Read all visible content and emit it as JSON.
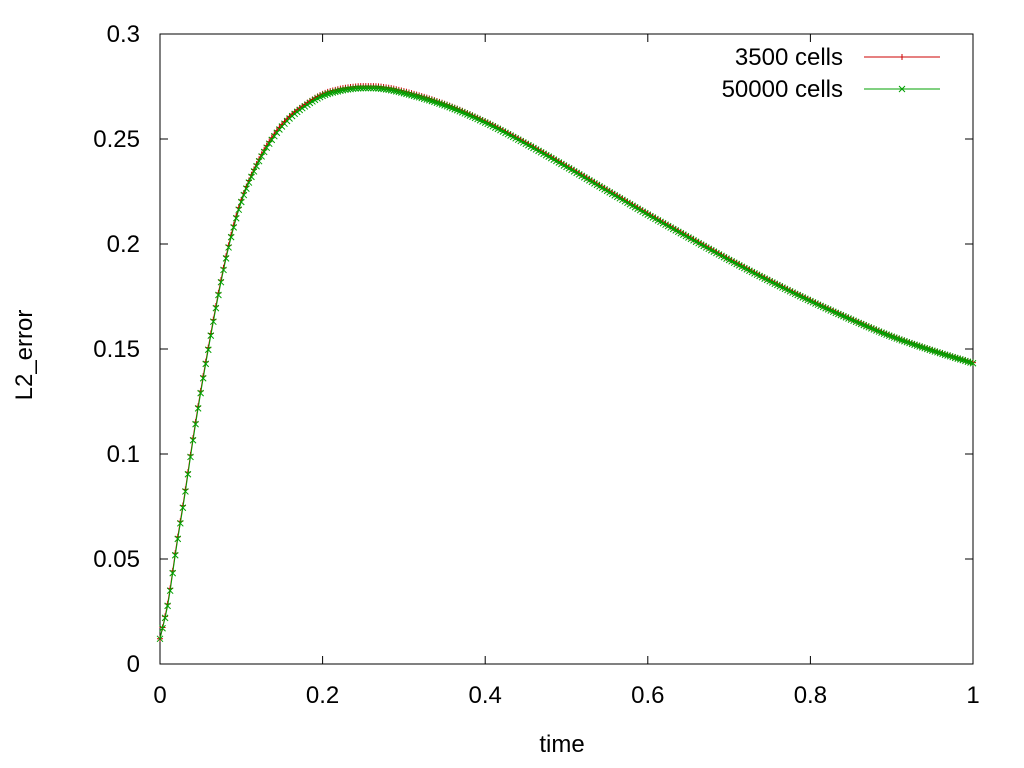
{
  "chart_data": {
    "type": "line",
    "xlabel": "time",
    "ylabel": "L2_error",
    "xlim": [
      0,
      1
    ],
    "ylim": [
      0,
      0.3
    ],
    "xticks": [
      "0",
      "0.2",
      "0.4",
      "0.6",
      "0.8",
      "1"
    ],
    "yticks": [
      "0",
      "0.05",
      "0.1",
      "0.15",
      "0.2",
      "0.25",
      "0.3"
    ],
    "grid": false,
    "legend_position": "top-right",
    "series": [
      {
        "name": "3500 cells",
        "color": "#cc0000",
        "marker": "plus",
        "points": [
          [
            0,
            0.012
          ],
          [
            0.01,
            0.03
          ],
          [
            0.02,
            0.056
          ],
          [
            0.03,
            0.08
          ],
          [
            0.04,
            0.106
          ],
          [
            0.05,
            0.13
          ],
          [
            0.06,
            0.152
          ],
          [
            0.07,
            0.173
          ],
          [
            0.08,
            0.192
          ],
          [
            0.09,
            0.208
          ],
          [
            0.1,
            0.221
          ],
          [
            0.12,
            0.239
          ],
          [
            0.14,
            0.252
          ],
          [
            0.16,
            0.261
          ],
          [
            0.18,
            0.267
          ],
          [
            0.2,
            0.2715
          ],
          [
            0.22,
            0.2738
          ],
          [
            0.24,
            0.275
          ],
          [
            0.26,
            0.2752
          ],
          [
            0.28,
            0.2745
          ],
          [
            0.3,
            0.2728
          ],
          [
            0.35,
            0.2668
          ],
          [
            0.4,
            0.2585
          ],
          [
            0.45,
            0.2483
          ],
          [
            0.5,
            0.2372
          ],
          [
            0.55,
            0.2258
          ],
          [
            0.6,
            0.2145
          ],
          [
            0.65,
            0.2035
          ],
          [
            0.7,
            0.1928
          ],
          [
            0.75,
            0.1827
          ],
          [
            0.8,
            0.1732
          ],
          [
            0.85,
            0.1643
          ],
          [
            0.9,
            0.1562
          ],
          [
            0.95,
            0.1495
          ],
          [
            1.0,
            0.1435
          ]
        ]
      },
      {
        "name": "50000 cells",
        "color": "#00a000",
        "marker": "cross",
        "points": [
          [
            0,
            0.012
          ],
          [
            0.01,
            0.029
          ],
          [
            0.02,
            0.055
          ],
          [
            0.03,
            0.079
          ],
          [
            0.04,
            0.105
          ],
          [
            0.05,
            0.129
          ],
          [
            0.06,
            0.151
          ],
          [
            0.07,
            0.172
          ],
          [
            0.08,
            0.191
          ],
          [
            0.09,
            0.207
          ],
          [
            0.1,
            0.22
          ],
          [
            0.12,
            0.238
          ],
          [
            0.14,
            0.251
          ],
          [
            0.16,
            0.26
          ],
          [
            0.18,
            0.266
          ],
          [
            0.2,
            0.2705
          ],
          [
            0.22,
            0.2728
          ],
          [
            0.24,
            0.274
          ],
          [
            0.26,
            0.2742
          ],
          [
            0.28,
            0.2735
          ],
          [
            0.3,
            0.2718
          ],
          [
            0.35,
            0.266
          ],
          [
            0.4,
            0.2578
          ],
          [
            0.45,
            0.2477
          ],
          [
            0.5,
            0.2367
          ],
          [
            0.55,
            0.2253
          ],
          [
            0.6,
            0.214
          ],
          [
            0.65,
            0.2031
          ],
          [
            0.7,
            0.1924
          ],
          [
            0.75,
            0.1823
          ],
          [
            0.8,
            0.1728
          ],
          [
            0.85,
            0.164
          ],
          [
            0.9,
            0.1559
          ],
          [
            0.95,
            0.1492
          ],
          [
            1.0,
            0.1432
          ]
        ]
      }
    ]
  }
}
